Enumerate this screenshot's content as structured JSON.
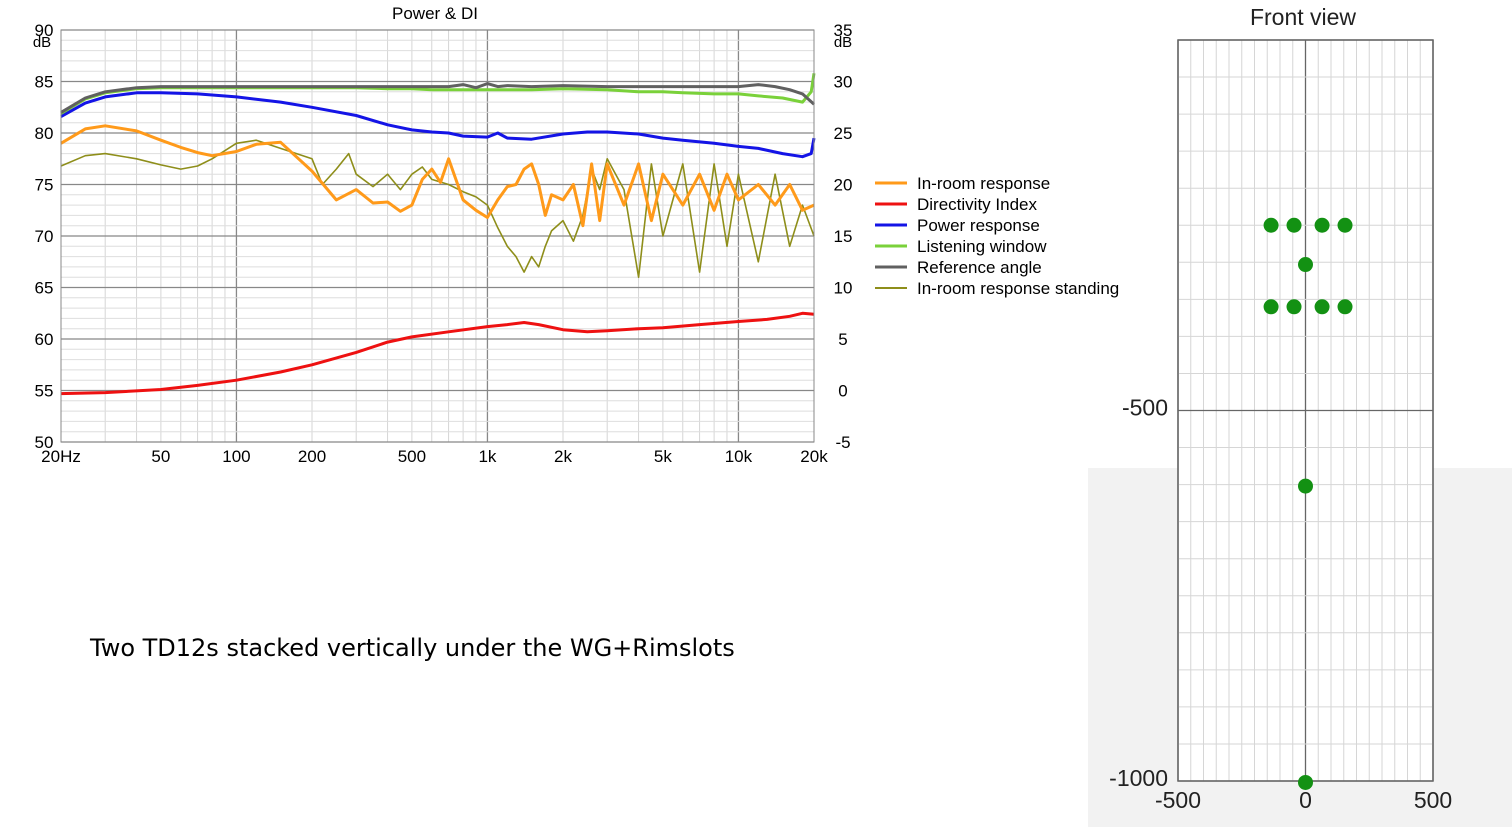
{
  "caption": "Two TD12s stacked vertically under the WG+Rimslots",
  "chart_data": [
    {
      "type": "line",
      "title": "Power & DI",
      "x_scale": "log",
      "xlim": [
        20,
        20000
      ],
      "x_tick_values": [
        20,
        50,
        100,
        200,
        500,
        1000,
        2000,
        5000,
        10000,
        20000
      ],
      "x_tick_labels": [
        "20Hz",
        "50",
        "100",
        "200",
        "500",
        "1k",
        "2k",
        "5k",
        "10k",
        "20k"
      ],
      "ylim_left": [
        50,
        90
      ],
      "y_left_ticks": [
        "50",
        "55",
        "60",
        "65",
        "70",
        "75",
        "80",
        "85",
        "90"
      ],
      "y_left_unit": "dB",
      "ylim_right": [
        -5,
        35
      ],
      "y_right_ticks": [
        "-5",
        "0",
        "5",
        "10",
        "15",
        "20",
        "25",
        "30",
        "35"
      ],
      "y_right_unit": "dB",
      "grid": true,
      "legend_position": "right",
      "series": [
        {
          "name": "In-room response",
          "color": "#ff9a1a",
          "axis": "left",
          "x": [
            20,
            25,
            30,
            40,
            50,
            60,
            70,
            80,
            100,
            120,
            150,
            200,
            250,
            300,
            350,
            400,
            450,
            500,
            550,
            600,
            650,
            700,
            800,
            900,
            1000,
            1100,
            1200,
            1300,
            1400,
            1500,
            1600,
            1700,
            1800,
            2000,
            2200,
            2400,
            2600,
            2800,
            3000,
            3500,
            4000,
            4500,
            5000,
            6000,
            7000,
            8000,
            9000,
            10000,
            12000,
            14000,
            16000,
            18000,
            20000
          ],
          "y": [
            79,
            80.4,
            80.7,
            80.2,
            79.3,
            78.6,
            78.1,
            77.8,
            78.2,
            78.9,
            79.1,
            76.3,
            73.5,
            74.5,
            73.2,
            73.3,
            72.4,
            73,
            75.5,
            76.5,
            75.2,
            77.5,
            73.5,
            72.5,
            71.8,
            73.5,
            74.8,
            75,
            76.5,
            77,
            75,
            72,
            74,
            73.5,
            75,
            71,
            77,
            71.5,
            77,
            73,
            77,
            71.5,
            76,
            73,
            76,
            72.5,
            76,
            73.5,
            75,
            73,
            75,
            72.5,
            73
          ]
        },
        {
          "name": "Directivity Index",
          "color": "#ee1111",
          "axis": "right",
          "x": [
            20,
            30,
            50,
            70,
            100,
            150,
            200,
            300,
            400,
            500,
            700,
            1000,
            1200,
            1400,
            1600,
            2000,
            2500,
            3000,
            4000,
            5000,
            7000,
            10000,
            13000,
            16000,
            18000,
            20000
          ],
          "y": [
            -0.3,
            -0.2,
            0.1,
            0.5,
            1,
            1.8,
            2.5,
            3.7,
            4.7,
            5.2,
            5.7,
            6.2,
            6.4,
            6.6,
            6.4,
            5.9,
            5.7,
            5.8,
            6,
            6.1,
            6.4,
            6.7,
            6.9,
            7.2,
            7.5,
            7.4
          ]
        },
        {
          "name": "Power response",
          "color": "#1414e6",
          "axis": "left",
          "x": [
            20,
            25,
            30,
            40,
            50,
            70,
            100,
            150,
            200,
            300,
            400,
            500,
            600,
            700,
            800,
            1000,
            1100,
            1200,
            1500,
            2000,
            2500,
            3000,
            4000,
            5000,
            6000,
            8000,
            10000,
            12000,
            15000,
            18000,
            19500,
            20000
          ],
          "y": [
            81.6,
            82.9,
            83.5,
            83.9,
            83.9,
            83.8,
            83.5,
            83,
            82.5,
            81.7,
            80.8,
            80.3,
            80.1,
            80,
            79.7,
            79.6,
            80,
            79.5,
            79.4,
            79.9,
            80.1,
            80.1,
            79.9,
            79.5,
            79.3,
            79,
            78.7,
            78.5,
            78,
            77.7,
            78,
            79.5
          ]
        },
        {
          "name": "Listening window",
          "color": "#7ad13a",
          "axis": "left",
          "x": [
            20,
            25,
            30,
            40,
            50,
            70,
            100,
            150,
            200,
            300,
            400,
            500,
            600,
            800,
            1000,
            1200,
            1500,
            2000,
            3000,
            4000,
            5000,
            6000,
            8000,
            10000,
            12000,
            15000,
            18000,
            19500,
            20000
          ],
          "y": [
            81.9,
            83.3,
            83.9,
            84.3,
            84.4,
            84.4,
            84.4,
            84.4,
            84.4,
            84.4,
            84.3,
            84.3,
            84.2,
            84.2,
            84.2,
            84.2,
            84.2,
            84.3,
            84.2,
            84,
            84,
            83.9,
            83.8,
            83.8,
            83.6,
            83.4,
            83,
            84,
            85.8
          ]
        },
        {
          "name": "Reference angle",
          "color": "#606060",
          "axis": "left",
          "x": [
            20,
            25,
            30,
            40,
            50,
            70,
            100,
            150,
            200,
            300,
            400,
            500,
            700,
            800,
            900,
            1000,
            1100,
            1200,
            1500,
            2000,
            3000,
            5000,
            7000,
            10000,
            12000,
            14000,
            16000,
            18000,
            20000
          ],
          "y": [
            82,
            83.4,
            84,
            84.4,
            84.5,
            84.5,
            84.5,
            84.5,
            84.5,
            84.5,
            84.5,
            84.5,
            84.5,
            84.7,
            84.4,
            84.8,
            84.5,
            84.6,
            84.5,
            84.6,
            84.5,
            84.5,
            84.5,
            84.5,
            84.7,
            84.5,
            84.2,
            83.8,
            82.8
          ]
        },
        {
          "name": "In-room response standing",
          "color": "#8e8e1a",
          "axis": "left",
          "x": [
            20,
            25,
            30,
            40,
            50,
            60,
            70,
            80,
            100,
            120,
            150,
            200,
            220,
            250,
            280,
            300,
            350,
            400,
            450,
            500,
            550,
            600,
            700,
            800,
            900,
            1000,
            1100,
            1200,
            1300,
            1400,
            1500,
            1600,
            1700,
            1800,
            2000,
            2200,
            2400,
            2600,
            2800,
            3000,
            3500,
            4000,
            4500,
            5000,
            6000,
            7000,
            8000,
            9000,
            10000,
            12000,
            14000,
            16000,
            18000,
            20000
          ],
          "y": [
            76.8,
            77.8,
            78,
            77.5,
            76.9,
            76.5,
            76.8,
            77.5,
            79,
            79.3,
            78.5,
            77.5,
            75,
            76.5,
            78,
            76,
            74.8,
            76,
            74.5,
            76,
            76.7,
            75.5,
            75,
            74.3,
            73.8,
            73,
            70.8,
            69,
            68,
            66.5,
            68,
            67,
            69,
            70.5,
            71.5,
            69.5,
            72,
            76.5,
            74.5,
            77.5,
            74.5,
            66,
            77,
            70,
            77,
            66.5,
            77,
            69,
            76,
            67.5,
            76,
            69,
            73,
            70
          ]
        }
      ]
    },
    {
      "type": "scatter",
      "title": "Front view",
      "xlim": [
        -500,
        500
      ],
      "ylim": [
        -1000,
        0
      ],
      "x_tick_labels": [
        "-500",
        "0",
        "500"
      ],
      "y_tick_labels": [
        "-500",
        "-1000"
      ],
      "grid": true,
      "point_color": "#139113",
      "points": [
        {
          "x": -135,
          "y": -250
        },
        {
          "x": -45,
          "y": -250
        },
        {
          "x": 65,
          "y": -250
        },
        {
          "x": 155,
          "y": -250
        },
        {
          "x": 0,
          "y": -303
        },
        {
          "x": -135,
          "y": -360
        },
        {
          "x": -45,
          "y": -360
        },
        {
          "x": 65,
          "y": -360
        },
        {
          "x": 155,
          "y": -360
        },
        {
          "x": 0,
          "y": -602
        },
        {
          "x": 0,
          "y": -1002
        }
      ]
    }
  ]
}
